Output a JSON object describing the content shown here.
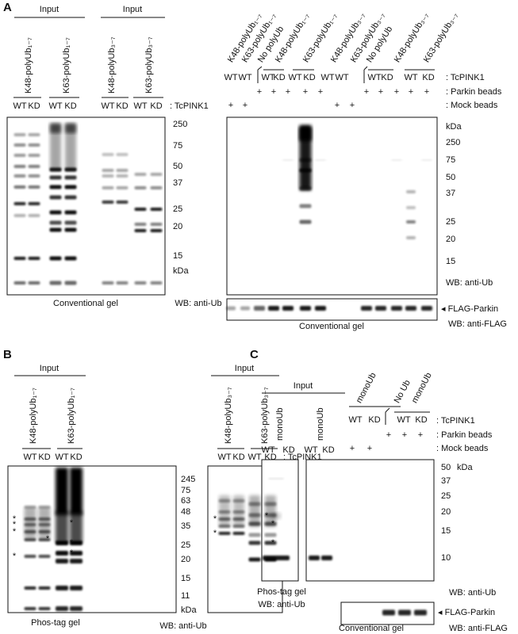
{
  "panel_a": {
    "label": "A",
    "input": {
      "headers": [
        "Input",
        "Input"
      ],
      "samples": [
        "K48-polyUb₁₋₇",
        "K63-polyUb₁₋₇",
        "K48-polyUb₃₋₇",
        "K63-polyUb₃₋₇"
      ],
      "genotypes": [
        "WT",
        "KD",
        "WT",
        "KD",
        "WT",
        "KD",
        "WT",
        "KD"
      ],
      "genotype_label": ": TcPINK1",
      "markers": [
        "250",
        "75",
        "50",
        "37",
        "25",
        "20",
        "15",
        "kDa"
      ],
      "gel_label": "Conventional gel",
      "wb_label": "WB: anti-Ub"
    },
    "pulldown": {
      "samples": [
        "K48-polyUb₁₋₇",
        "K63-polyUb₁₋₇",
        "No polyUb",
        "K48-polyUb₁₋₇",
        "K63-polyUb₁₋₇",
        "K48-polyUb₃₋₇",
        "K63-polyUb₃₋₇",
        "No polyUb",
        "K48-polyUb₃₋₇",
        "K63-polyUb₃₋₇"
      ],
      "genotypes": [
        "WT",
        "WT",
        "WT",
        "KD",
        "WT",
        "KD",
        "WT",
        "WT",
        "WT",
        "KD",
        "WT",
        "KD"
      ],
      "row_labels": [
        ": TcPINK1",
        ": Parkin beads",
        ": Mock beads"
      ],
      "parkin_beads": [
        "+",
        "+",
        "+",
        "+",
        "+",
        "+",
        "+",
        "+",
        "+",
        "+"
      ],
      "mock_beads": [
        "+",
        "+",
        "+",
        "+"
      ],
      "markers": [
        "kDa",
        "250",
        "75",
        "50",
        "37",
        "25",
        "20",
        "15"
      ],
      "wb_label": "WB: anti-Ub",
      "flag_label": "◂ FLAG-Parkin",
      "flag_wb_label": "WB: anti-FLAG",
      "gel_label": "Conventional gel"
    }
  },
  "panel_b": {
    "label": "B",
    "headers": [
      "Input",
      "Input"
    ],
    "samples": [
      "K48-polyUb₁₋₇",
      "K63-polyUb₁₋₇",
      "K48-polyUb₃₋₇",
      "K63-polyUb₃₋₇"
    ],
    "genotypes": [
      "WT",
      "KD",
      "WT",
      "KD",
      "WT",
      "KD",
      "WT",
      "KD"
    ],
    "genotype_label": ": TcPINK1",
    "markers": [
      "245",
      "75",
      "63",
      "48",
      "35",
      "25",
      "20",
      "15",
      "11",
      "kDa"
    ],
    "asterisks": [
      "*",
      "*",
      "*",
      "*",
      "*",
      "*",
      "*",
      "*",
      "*",
      "*",
      "*",
      "*"
    ],
    "gel_label": "Phos-tag gel",
    "wb_label": "WB: anti-Ub"
  },
  "panel_c": {
    "label": "C",
    "header": "Input",
    "input_samples": [
      "monoUb",
      "monoUb"
    ],
    "pulldown_samples": [
      "monoUb",
      "No Ub",
      "monoUb"
    ],
    "genotypes": [
      "WT",
      "KD",
      "WT",
      "KD",
      "WT",
      "KD",
      "WT",
      "KD"
    ],
    "row_labels": [
      ": TcPINK1",
      ": Parkin beads",
      ": Mock beads"
    ],
    "parkin_beads": [
      "+",
      "+",
      "+"
    ],
    "mock_beads": [
      "+",
      "+"
    ],
    "asterisk": "*",
    "markers": [
      "kDa",
      "50",
      "37",
      "25",
      "20",
      "15",
      "10"
    ],
    "wb_label": "WB: anti-Ub",
    "phos_label": "Phos-tag gel",
    "phos_wb_label": "WB: anti-Ub",
    "flag_label": "◂ FLAG-Parkin",
    "flag_wb_label": "WB: anti-FLAG",
    "gel_label": "Conventional gel"
  }
}
